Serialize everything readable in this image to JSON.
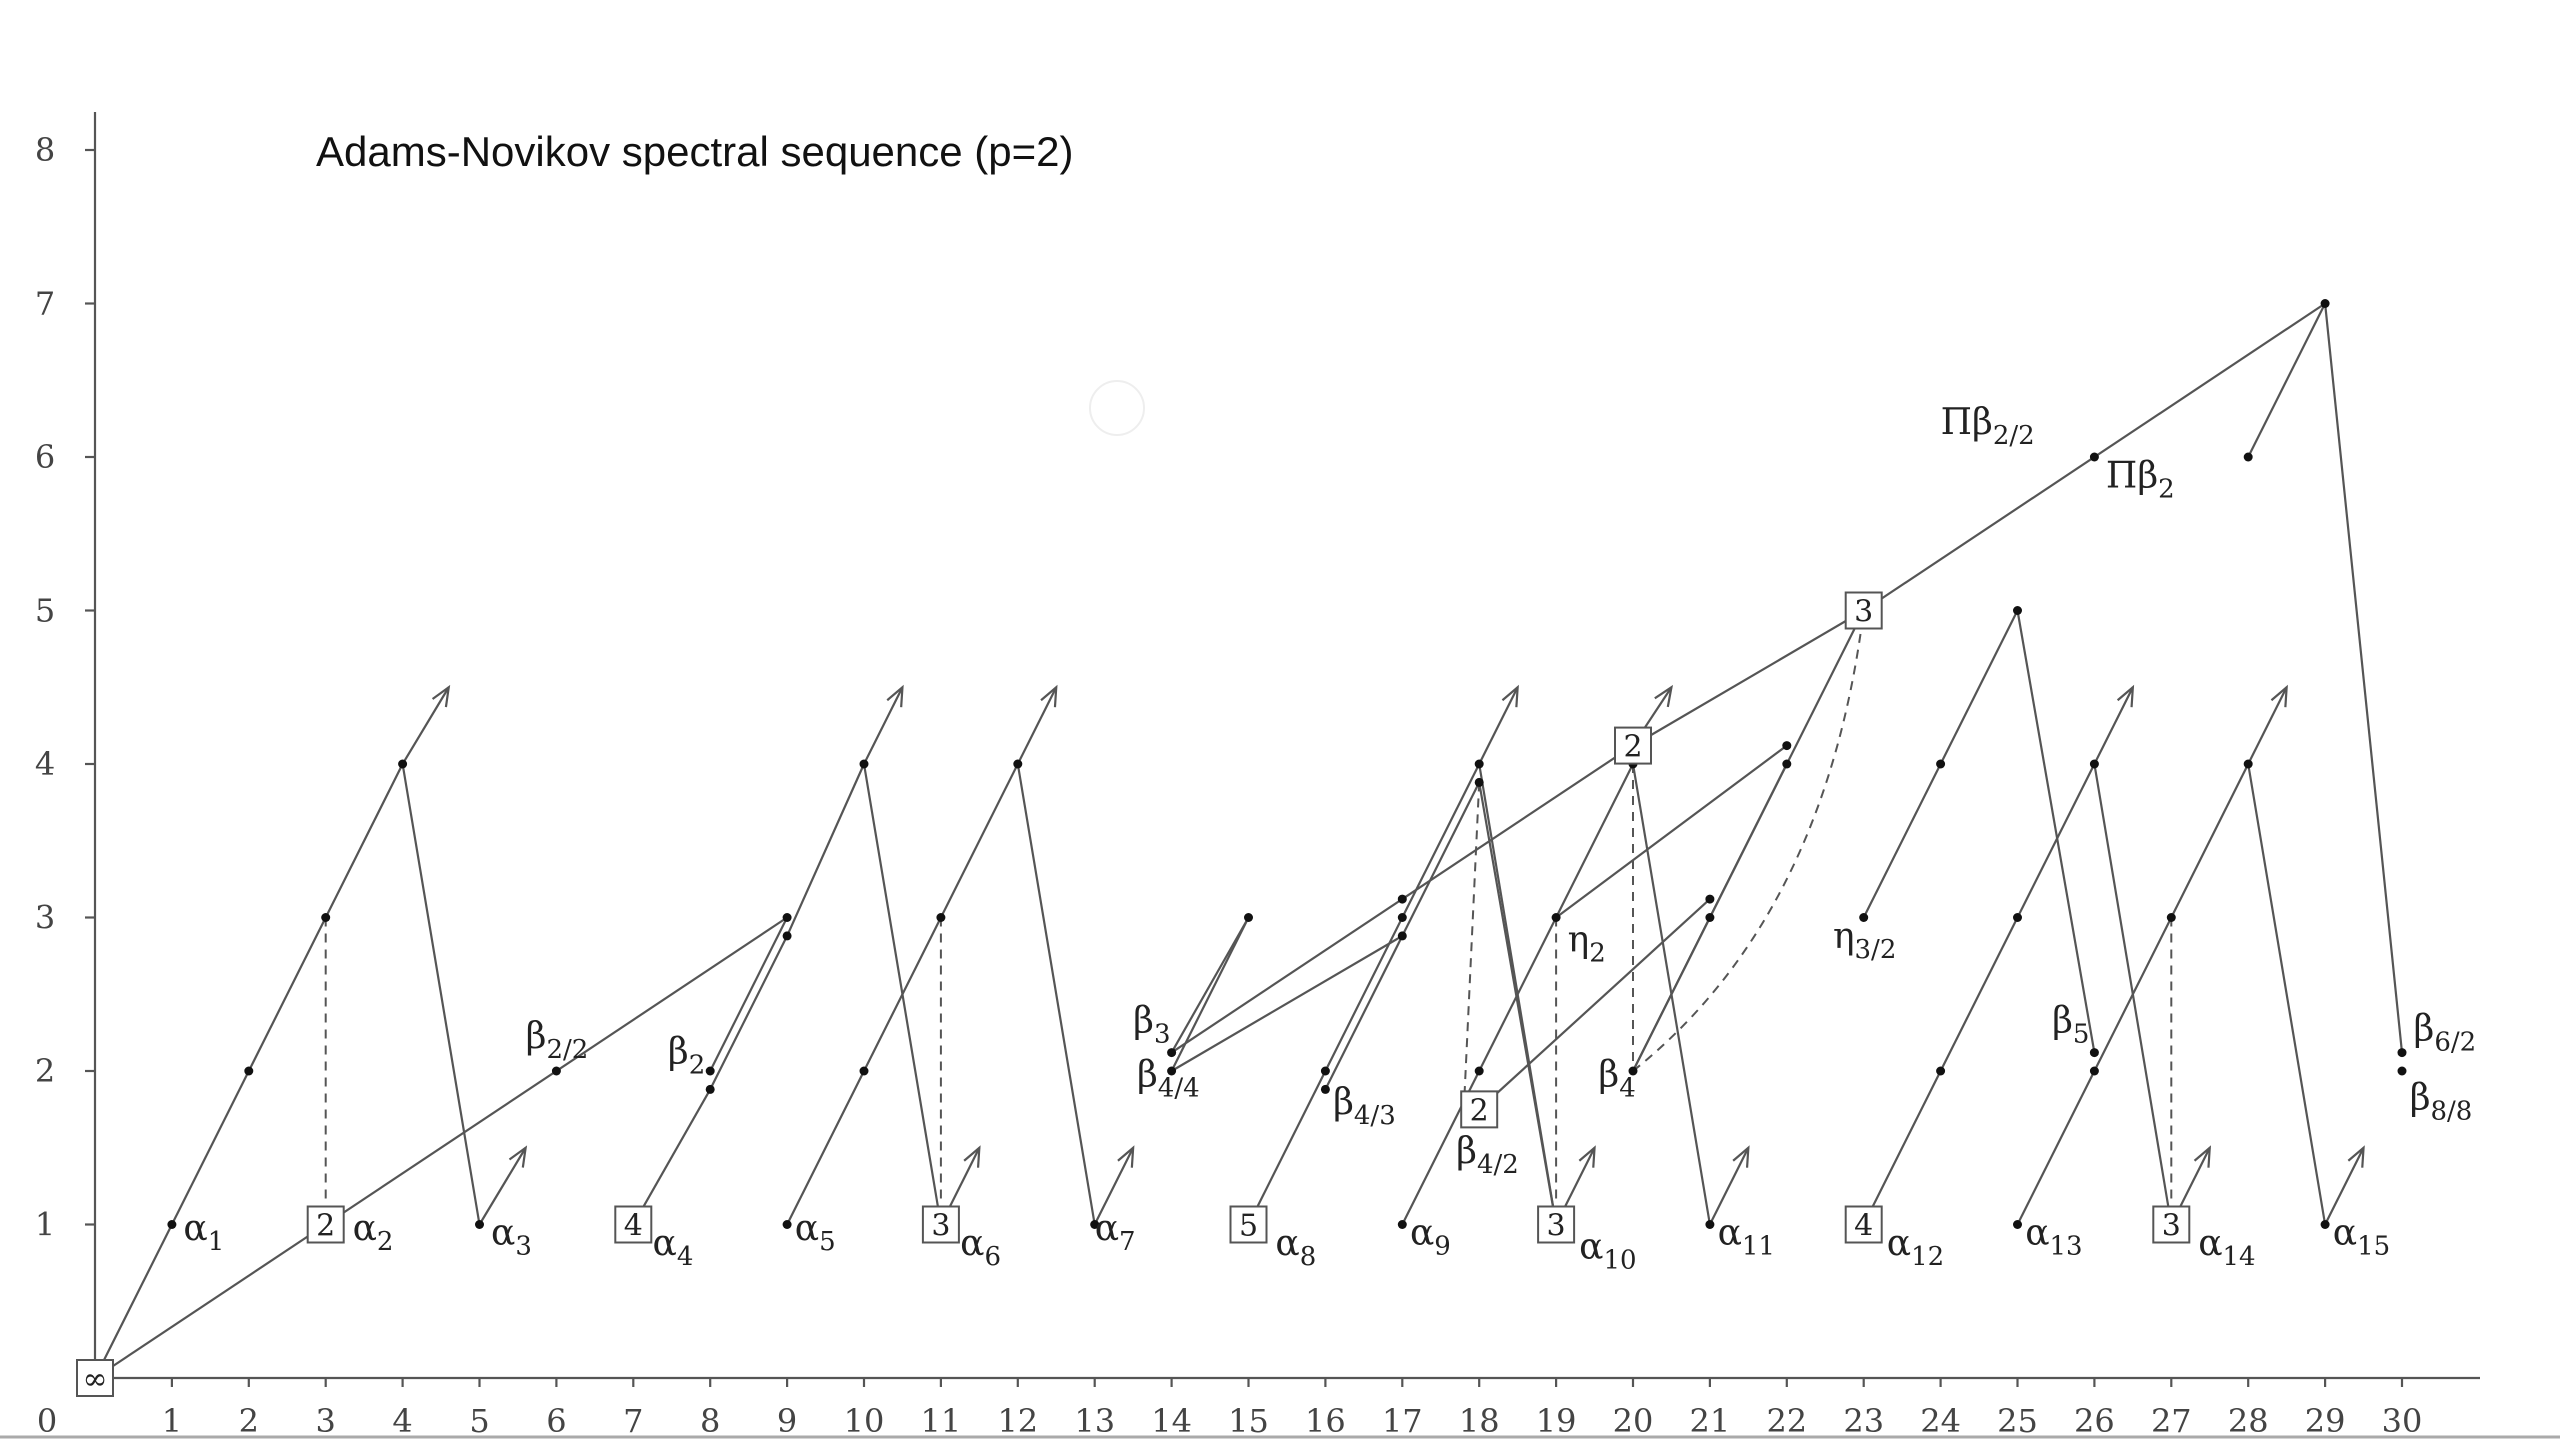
{
  "title": "Adams-Novikov spectral sequence (p=2)",
  "x_ticks": [
    "0",
    "1",
    "2",
    "3",
    "4",
    "5",
    "6",
    "7",
    "8",
    "9",
    "10",
    "11",
    "12",
    "13",
    "14",
    "15",
    "16",
    "17",
    "18",
    "19",
    "20",
    "21",
    "22",
    "23",
    "24",
    "25",
    "26",
    "27",
    "28",
    "29",
    "30"
  ],
  "y_ticks": [
    "1",
    "2",
    "3",
    "4",
    "5",
    "6",
    "7",
    "8"
  ],
  "dots": [
    [
      1,
      1
    ],
    [
      2,
      2
    ],
    [
      3,
      3
    ],
    [
      4,
      4
    ],
    [
      5,
      1
    ],
    [
      6,
      2
    ],
    [
      8,
      1.88
    ],
    [
      8,
      2
    ],
    [
      9,
      1
    ],
    [
      9,
      2.88
    ],
    [
      9,
      3
    ],
    [
      10,
      2
    ],
    [
      10,
      4
    ],
    [
      12,
      4
    ],
    [
      11,
      3
    ],
    [
      13,
      1
    ],
    [
      14,
      2
    ],
    [
      14,
      2.12
    ],
    [
      15,
      3
    ],
    [
      16,
      1.88
    ],
    [
      16,
      2
    ],
    [
      17,
      1
    ],
    [
      17,
      2.88
    ],
    [
      17,
      3
    ],
    [
      17,
      3.12
    ],
    [
      18,
      2
    ],
    [
      18,
      3.88
    ],
    [
      18,
      4
    ],
    [
      19,
      3
    ],
    [
      20,
      2
    ],
    [
      20,
      4
    ],
    [
      21,
      1
    ],
    [
      21,
      3
    ],
    [
      21,
      3.12
    ],
    [
      22,
      4
    ],
    [
      22,
      4.12
    ],
    [
      23,
      3
    ],
    [
      24,
      2
    ],
    [
      24,
      4
    ],
    [
      25,
      1
    ],
    [
      25,
      3
    ],
    [
      25,
      5
    ],
    [
      26,
      2
    ],
    [
      26,
      2.12
    ],
    [
      26,
      4
    ],
    [
      26,
      6
    ],
    [
      27,
      3
    ],
    [
      28,
      4
    ],
    [
      28,
      6
    ],
    [
      29,
      1
    ],
    [
      29,
      7
    ],
    [
      30,
      2
    ],
    [
      30,
      2.12
    ]
  ],
  "boxes": [
    {
      "x": 0,
      "y": 0,
      "label": "∞"
    },
    {
      "x": 3,
      "y": 1,
      "label": "2"
    },
    {
      "x": 7,
      "y": 1,
      "label": "4"
    },
    {
      "x": 11,
      "y": 1,
      "label": "3"
    },
    {
      "x": 15,
      "y": 1,
      "label": "5"
    },
    {
      "x": 18,
      "y": 1.75,
      "label": "2"
    },
    {
      "x": 19,
      "y": 1,
      "label": "3"
    },
    {
      "x": 20,
      "y": 4.12,
      "label": "2"
    },
    {
      "x": 23,
      "y": 5,
      "label": "3"
    },
    {
      "x": 23,
      "y": 1,
      "label": "4"
    },
    {
      "x": 27,
      "y": 1,
      "label": "3"
    }
  ],
  "segments": [
    [
      0,
      0,
      1,
      1
    ],
    [
      1,
      1,
      2,
      2
    ],
    [
      2,
      2,
      3,
      3
    ],
    [
      3,
      3,
      4,
      4
    ],
    [
      4,
      4,
      5,
      1
    ],
    [
      0,
      0,
      3,
      1
    ],
    [
      3,
      1,
      9,
      3
    ],
    [
      7,
      1,
      8,
      1.88
    ],
    [
      8,
      1.88,
      9,
      2.88
    ],
    [
      8,
      2,
      9,
      3
    ],
    [
      9,
      1,
      10,
      2
    ],
    [
      10,
      2,
      11,
      3
    ],
    [
      11,
      3,
      12,
      4
    ],
    [
      12,
      4,
      13,
      1
    ],
    [
      9,
      2.88,
      10,
      4
    ],
    [
      10,
      4,
      11,
      1
    ],
    [
      14,
      2.12,
      15,
      3
    ],
    [
      14,
      2,
      15,
      3
    ],
    [
      14,
      2.12,
      17,
      3.12
    ],
    [
      14,
      2,
      17,
      2.88
    ],
    [
      15,
      1,
      16,
      2
    ],
    [
      16,
      2,
      17,
      3
    ],
    [
      17,
      3,
      18,
      4
    ],
    [
      16,
      1.88,
      17,
      2.88
    ],
    [
      17,
      2.88,
      18,
      3.88
    ],
    [
      17,
      3.12,
      20,
      4.12
    ],
    [
      20,
      4.12,
      23,
      5
    ],
    [
      23,
      5,
      29,
      7
    ],
    [
      17,
      1,
      18,
      2
    ],
    [
      18,
      2,
      19,
      3
    ],
    [
      19,
      3,
      20,
      4
    ],
    [
      18,
      4,
      19,
      1
    ],
    [
      18,
      3.88,
      19,
      1
    ],
    [
      20,
      4,
      21,
      1
    ],
    [
      18,
      1.75,
      21,
      3.12
    ],
    [
      19,
      3,
      22,
      4.12
    ],
    [
      20,
      2,
      21,
      3
    ],
    [
      21,
      3,
      22,
      4
    ],
    [
      20,
      2,
      23,
      5
    ],
    [
      23,
      3,
      24,
      4
    ],
    [
      24,
      4,
      25,
      5
    ],
    [
      25,
      5,
      26,
      2.12
    ],
    [
      23,
      1,
      24,
      2
    ],
    [
      24,
      2,
      25,
      3
    ],
    [
      25,
      3,
      26,
      4
    ],
    [
      26,
      4,
      27,
      1
    ],
    [
      25,
      1,
      26,
      2
    ],
    [
      26,
      2,
      27,
      3
    ],
    [
      27,
      3,
      28,
      4
    ],
    [
      28,
      4,
      29,
      1
    ],
    [
      28,
      6,
      29,
      7
    ],
    [
      29,
      7,
      30,
      2.12
    ]
  ],
  "arrows": [
    [
      4,
      4,
      4.6,
      4.5
    ],
    [
      5,
      1,
      5.6,
      1.5
    ],
    [
      10,
      4,
      10.5,
      4.5
    ],
    [
      11,
      1,
      11.5,
      1.5
    ],
    [
      12,
      4,
      12.5,
      4.5
    ],
    [
      13,
      1,
      13.5,
      1.5
    ],
    [
      18,
      4,
      18.5,
      4.5
    ],
    [
      19,
      1,
      19.5,
      1.5
    ],
    [
      20,
      4.12,
      20.5,
      4.5
    ],
    [
      21,
      1,
      21.5,
      1.5
    ],
    [
      26,
      4,
      26.5,
      4.5
    ],
    [
      27,
      1,
      27.5,
      1.5
    ],
    [
      28,
      4,
      28.5,
      4.5
    ],
    [
      29,
      1,
      29.5,
      1.5
    ]
  ],
  "dashed": [
    [
      3,
      3,
      3,
      1
    ],
    [
      11,
      3,
      11,
      1
    ],
    [
      18,
      3.88,
      17.8,
      1.75
    ],
    [
      19,
      3,
      19,
      1
    ],
    [
      20,
      4,
      20,
      2
    ],
    [
      27,
      3,
      27,
      1
    ]
  ],
  "dashed_curves": [
    [
      20,
      2,
      22.5,
      3,
      23,
      5
    ]
  ],
  "labels": [
    {
      "x": 1.15,
      "y": 0.9,
      "t": "α",
      "s": "1"
    },
    {
      "x": 3.35,
      "y": 0.9,
      "t": "α",
      "s": "2"
    },
    {
      "x": 5.15,
      "y": 0.87,
      "t": "α",
      "s": "3"
    },
    {
      "x": 7.25,
      "y": 0.8,
      "t": "α",
      "s": "4"
    },
    {
      "x": 9.1,
      "y": 0.9,
      "t": "α",
      "s": "5"
    },
    {
      "x": 11.25,
      "y": 0.8,
      "t": "α",
      "s": "6"
    },
    {
      "x": 13.0,
      "y": 0.9,
      "t": "α",
      "s": "7"
    },
    {
      "x": 15.35,
      "y": 0.8,
      "t": "α",
      "s": "8"
    },
    {
      "x": 17.1,
      "y": 0.87,
      "t": "α",
      "s": "9"
    },
    {
      "x": 19.3,
      "y": 0.78,
      "t": "α",
      "s": "10"
    },
    {
      "x": 21.1,
      "y": 0.87,
      "t": "α",
      "s": "11"
    },
    {
      "x": 23.3,
      "y": 0.8,
      "t": "α",
      "s": "12"
    },
    {
      "x": 25.1,
      "y": 0.87,
      "t": "α",
      "s": "13"
    },
    {
      "x": 27.35,
      "y": 0.8,
      "t": "α",
      "s": "14"
    },
    {
      "x": 29.1,
      "y": 0.87,
      "t": "α",
      "s": "15"
    },
    {
      "x": 5.6,
      "y": 2.15,
      "t": "β",
      "s": "2/2"
    },
    {
      "x": 7.45,
      "y": 2.05,
      "t": "β",
      "s": "2"
    },
    {
      "x": 13.5,
      "y": 2.25,
      "t": "β",
      "s": "3"
    },
    {
      "x": 13.55,
      "y": 1.9,
      "t": "β",
      "s": "4/4"
    },
    {
      "x": 16.1,
      "y": 1.72,
      "t": "β",
      "s": "4/3"
    },
    {
      "x": 17.7,
      "y": 1.4,
      "t": "β",
      "s": "4/2"
    },
    {
      "x": 19.55,
      "y": 1.9,
      "t": "β",
      "s": "4"
    },
    {
      "x": 19.15,
      "y": 2.78,
      "t": "η",
      "s": "2"
    },
    {
      "x": 22.6,
      "y": 2.8,
      "t": "η",
      "s": "3/2"
    },
    {
      "x": 25.45,
      "y": 2.25,
      "t": "β",
      "s": "5"
    },
    {
      "x": 30.15,
      "y": 2.2,
      "t": "β",
      "s": "6/2"
    },
    {
      "x": 30.1,
      "y": 1.75,
      "t": "β",
      "s": "8/8"
    },
    {
      "x": 24.0,
      "y": 6.15,
      "t": "Πβ",
      "s": "2/2"
    },
    {
      "x": 26.15,
      "y": 5.8,
      "t": "Πβ",
      "s": "2"
    }
  ]
}
